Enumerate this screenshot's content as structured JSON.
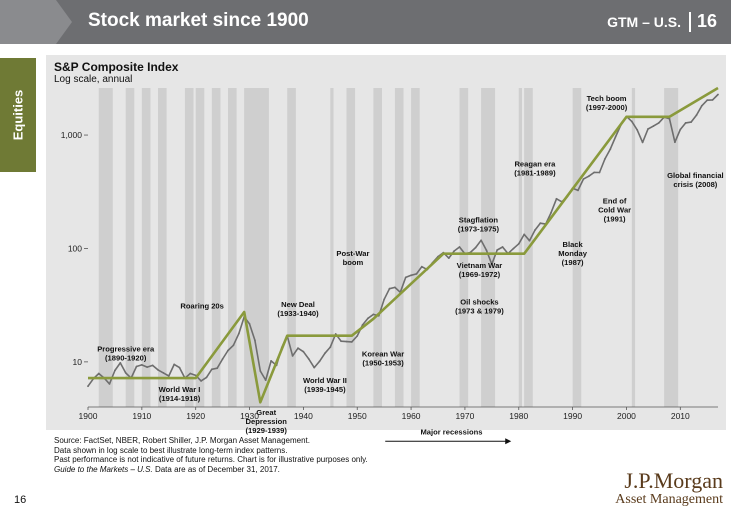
{
  "header": {
    "title": "Stock market since 1900",
    "gtm": "GTM – U.S.",
    "page": "16"
  },
  "side_tab": "Equities",
  "chart_data": {
    "type": "line",
    "title": "S&P Composite Index",
    "subtitle": "Log scale, annual",
    "xlim": [
      1900,
      2017
    ],
    "ylim": [
      4,
      2600
    ],
    "ylog": true,
    "xticks": [
      1900,
      1910,
      1920,
      1930,
      1940,
      1950,
      1960,
      1970,
      1980,
      1990,
      2000,
      2010
    ],
    "yticks": [
      {
        "v": 10,
        "label": "10"
      },
      {
        "v": 100,
        "label": "100"
      },
      {
        "v": 1000,
        "label": "1,000"
      }
    ],
    "series": [
      {
        "name": "",
        "role": "index",
        "color": "#6e6e6e",
        "x": [
          1900,
          1901,
          1902,
          1903,
          1904,
          1905,
          1906,
          1907,
          1908,
          1909,
          1910,
          1911,
          1912,
          1913,
          1914,
          1915,
          1916,
          1917,
          1918,
          1919,
          1920,
          1921,
          1922,
          1923,
          1924,
          1925,
          1926,
          1927,
          1928,
          1929,
          1930,
          1931,
          1932,
          1933,
          1934,
          1935,
          1936,
          1937,
          1938,
          1939,
          1940,
          1941,
          1942,
          1943,
          1944,
          1945,
          1946,
          1947,
          1948,
          1949,
          1950,
          1951,
          1952,
          1953,
          1954,
          1955,
          1956,
          1957,
          1958,
          1959,
          1960,
          1961,
          1962,
          1963,
          1964,
          1965,
          1966,
          1967,
          1968,
          1969,
          1970,
          1971,
          1972,
          1973,
          1974,
          1975,
          1976,
          1977,
          1978,
          1979,
          1980,
          1981,
          1982,
          1983,
          1984,
          1985,
          1986,
          1987,
          1988,
          1989,
          1990,
          1991,
          1992,
          1993,
          1994,
          1995,
          1996,
          1997,
          1998,
          1999,
          2000,
          2001,
          2002,
          2003,
          2004,
          2005,
          2006,
          2007,
          2008,
          2009,
          2010,
          2011,
          2012,
          2013,
          2014,
          2015,
          2016,
          2017
        ],
        "y": [
          6.1,
          7.1,
          7.9,
          7.2,
          6.4,
          8.4,
          9.8,
          8.0,
          7.2,
          9.1,
          9.4,
          9.0,
          9.3,
          8.5,
          8.0,
          7.5,
          9.5,
          8.9,
          7.2,
          7.9,
          7.6,
          6.8,
          7.3,
          8.6,
          8.8,
          10.6,
          12.6,
          14.0,
          17.7,
          24.9,
          21.6,
          15.5,
          8.3,
          6.9,
          10.2,
          9.3,
          13.4,
          17.0,
          11.3,
          13.2,
          12.3,
          10.6,
          8.9,
          10.1,
          11.9,
          13.5,
          17.6,
          15.2,
          15.1,
          15.0,
          16.9,
          21.2,
          24.2,
          26.2,
          25.5,
          35.6,
          44.2,
          45.4,
          41.1,
          55.6,
          58.0,
          59.7,
          69.1,
          65.1,
          75.0,
          84.8,
          91.7,
          82.2,
          95.0,
          103.0,
          89.7,
          92.2,
          102.0,
          118.0,
          96.1,
          72.6,
          96.9,
          103.0,
          90.1,
          99.7,
          110.0,
          133.0,
          117.0,
          145.0,
          167.0,
          164.0,
          207.0,
          274.0,
          258.0,
          285.0,
          339.0,
          325.0,
          409.0,
          434.0,
          469.0,
          468.0,
          615.0,
          752.0,
          972.0,
          1240.0,
          1460.0,
          1320.0,
          1110.0,
          861.0,
          1130.0,
          1200.0,
          1280.0,
          1440.0,
          1390.0,
          865.0,
          1120.0,
          1280.0,
          1300.0,
          1500.0,
          1810.0,
          2030.0,
          2040.0,
          2280.0
        ]
      },
      {
        "name": "",
        "role": "era-trend",
        "color": "#8a9a3c",
        "x": [
          1900,
          1920,
          1929,
          1932,
          1937,
          1949,
          1953,
          1966,
          1981,
          2000,
          2008,
          2017
        ],
        "y": [
          7.2,
          7.2,
          27.5,
          4.4,
          17.0,
          17.0,
          24.0,
          90.0,
          90.0,
          1450.0,
          1450.0,
          2600.0
        ]
      }
    ],
    "recessions": [
      [
        1902,
        1904
      ],
      [
        1907,
        1908
      ],
      [
        1910,
        1911
      ],
      [
        1913,
        1914
      ],
      [
        1918,
        1919
      ],
      [
        1920,
        1921
      ],
      [
        1923,
        1924
      ],
      [
        1926,
        1927
      ],
      [
        1929,
        1933
      ],
      [
        1937,
        1938
      ],
      [
        1945,
        1945
      ],
      [
        1948,
        1949
      ],
      [
        1953,
        1954
      ],
      [
        1957,
        1958
      ],
      [
        1960,
        1961
      ],
      [
        1969,
        1970
      ],
      [
        1973,
        1975
      ],
      [
        1980,
        1980
      ],
      [
        1981,
        1982
      ],
      [
        1990,
        1991
      ],
      [
        2001,
        2001
      ],
      [
        2007,
        2009
      ]
    ],
    "annotations": [
      {
        "id": "progressive-era",
        "lines": [
          "Progressive era",
          "(1890-1920)"
        ],
        "x": 1907,
        "y": 12.4
      },
      {
        "id": "roaring-20s",
        "lines": [
          "Roaring 20s"
        ],
        "x": 1921.2,
        "y": 29.5
      },
      {
        "id": "world-war-1",
        "lines": [
          "World War I",
          "(1914-1918)"
        ],
        "x": 1917,
        "y": 5.4
      },
      {
        "id": "great-depression",
        "lines": [
          "Great",
          "Depression",
          "(1929-1939)"
        ],
        "x": 1933.1,
        "y": 3.4
      },
      {
        "id": "new-deal",
        "lines": [
          "New Deal",
          "(1933-1940)"
        ],
        "x": 1939,
        "y": 30.5
      },
      {
        "id": "world-war-2",
        "lines": [
          "World War II",
          "(1939-1945)"
        ],
        "x": 1944,
        "y": 6.5
      },
      {
        "id": "post-war-boom",
        "lines": [
          "Post-War",
          "boom"
        ],
        "x": 1949.2,
        "y": 86
      },
      {
        "id": "korean-war",
        "lines": [
          "Korean War",
          "(1950-1953)"
        ],
        "x": 1954.8,
        "y": 11.2
      },
      {
        "id": "stagflation",
        "lines": [
          "Stagflation",
          "(1973-1975)"
        ],
        "x": 1972.5,
        "y": 170
      },
      {
        "id": "vietnam-war",
        "lines": [
          "Vietnam War",
          "(1969-1972)"
        ],
        "x": 1972.7,
        "y": 67
      },
      {
        "id": "oil-shocks",
        "lines": [
          "Oil shocks",
          "(1973 & 1979)"
        ],
        "x": 1972.7,
        "y": 32
      },
      {
        "id": "reagan-era",
        "lines": [
          "Reagan era",
          "(1981-1989)"
        ],
        "x": 1983,
        "y": 527
      },
      {
        "id": "tech-boom",
        "lines": [
          "Tech boom",
          "(1997-2000)"
        ],
        "x": 1996.3,
        "y": 2000
      },
      {
        "id": "black-monday",
        "lines": [
          "Black",
          "Monday",
          "(1987)"
        ],
        "x": 1990,
        "y": 103
      },
      {
        "id": "end-of-cold-war",
        "lines": [
          "End of",
          "Cold War",
          "(1991)"
        ],
        "x": 1997.8,
        "y": 248
      },
      {
        "id": "global-financial-crisis",
        "lines": [
          "Global financial",
          "crisis (2008)"
        ],
        "x": 2012.8,
        "y": 420
      },
      {
        "id": "major-recessions",
        "lines": [
          "Major recessions"
        ],
        "x": 1967.5,
        "y": 2.3
      }
    ]
  },
  "footer": {
    "source_lines": [
      "Source: FactSet, NBER, Robert Shiller, J.P. Morgan Asset Management.",
      "Data shown in log scale to best illustrate long-term index patterns.",
      "Past performance is not indicative of future returns. Chart is for illustrative purposes only."
    ],
    "guide_title": "Guide to the Markets – U.S.",
    "guide_rest": " Data are as of December 31, 2017.",
    "page_number": "16"
  },
  "logo": {
    "line1": "J.P.Morgan",
    "line2": "Asset Management"
  }
}
